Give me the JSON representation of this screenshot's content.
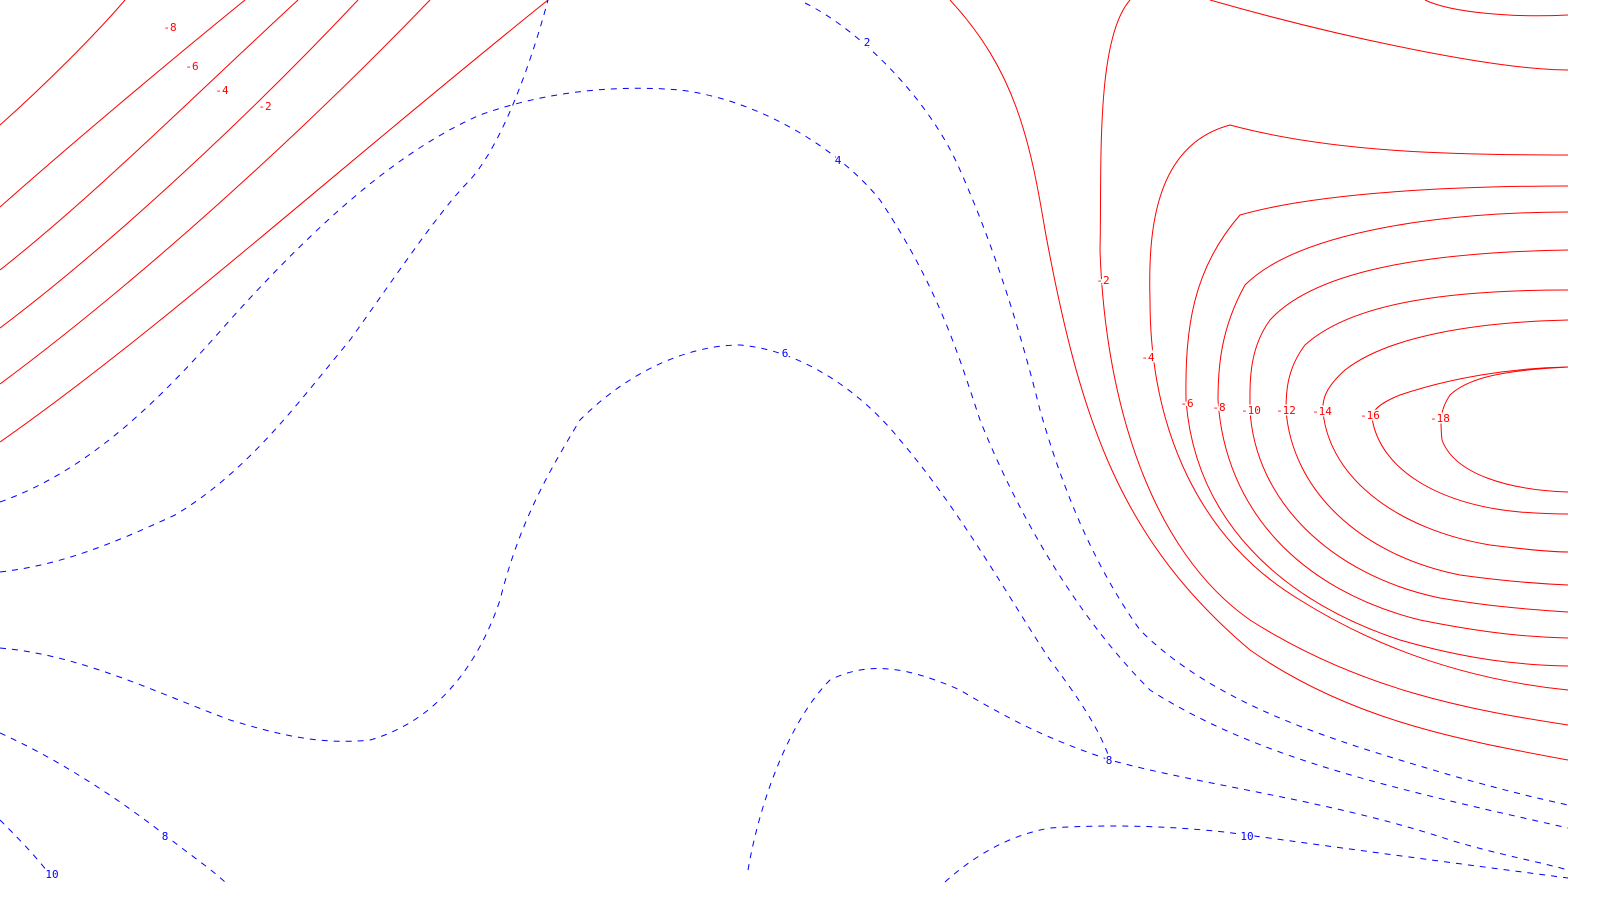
{
  "colors": {
    "negative": "#ff0000",
    "positive": "#0000ff",
    "background": "#ffffff"
  },
  "styles": {
    "negative": "solid",
    "positive": "dashed"
  },
  "contour_labels": {
    "neg_upper_left": [
      "-8",
      "-6",
      "-4",
      "-2"
    ],
    "neg_right": [
      "-2",
      "-4",
      "-6",
      "-8",
      "-10",
      "-12",
      "-14",
      "-16",
      "-18"
    ],
    "pos": [
      "2",
      "4",
      "6",
      "8",
      "8",
      "10",
      "10"
    ]
  }
}
